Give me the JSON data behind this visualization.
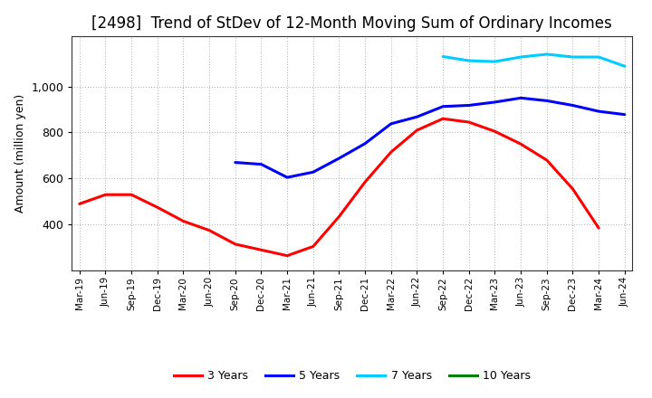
{
  "title": "[2498]  Trend of StDev of 12-Month Moving Sum of Ordinary Incomes",
  "ylabel": "Amount (million yen)",
  "x_labels": [
    "Mar-19",
    "Jun-19",
    "Sep-19",
    "Dec-19",
    "Mar-20",
    "Jun-20",
    "Sep-20",
    "Dec-20",
    "Mar-21",
    "Jun-21",
    "Sep-21",
    "Dec-21",
    "Mar-22",
    "Jun-22",
    "Sep-22",
    "Dec-22",
    "Mar-23",
    "Jun-23",
    "Sep-23",
    "Dec-23",
    "Mar-24",
    "Jun-24"
  ],
  "series": {
    "3 Years": {
      "color": "#FF0000",
      "values": [
        490,
        530,
        530,
        475,
        415,
        375,
        315,
        290,
        265,
        305,
        435,
        585,
        715,
        810,
        860,
        845,
        805,
        750,
        680,
        555,
        385,
        null
      ]
    },
    "5 Years": {
      "color": "#0000FF",
      "values": [
        null,
        null,
        null,
        null,
        null,
        null,
        670,
        662,
        605,
        628,
        688,
        752,
        838,
        868,
        913,
        918,
        932,
        950,
        938,
        918,
        892,
        878
      ]
    },
    "7 Years": {
      "color": "#00CCFF",
      "values": [
        null,
        null,
        null,
        null,
        null,
        null,
        null,
        null,
        null,
        null,
        null,
        null,
        null,
        null,
        1130,
        1112,
        1108,
        1128,
        1140,
        1128,
        1128,
        1088
      ]
    },
    "10 Years": {
      "color": "#008000",
      "values": [
        null,
        null,
        null,
        null,
        null,
        null,
        null,
        null,
        null,
        null,
        null,
        null,
        null,
        null,
        null,
        null,
        null,
        null,
        null,
        null,
        null,
        null
      ]
    }
  },
  "ylim": [
    200,
    1220
  ],
  "yticks": [
    400,
    600,
    800,
    1000
  ],
  "background_color": "#ffffff",
  "plot_background": "#ffffff",
  "grid_color": "#aaaaaa",
  "title_fontsize": 12,
  "legend_items": [
    "3 Years",
    "5 Years",
    "7 Years",
    "10 Years"
  ]
}
